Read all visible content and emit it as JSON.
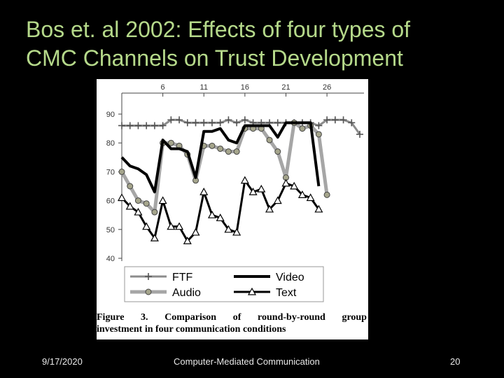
{
  "slide": {
    "title_line1": "Bos et. al 2002: Effects of four types of",
    "title_line2": "CMC Channels on Trust Development",
    "footer_date": "9/17/2020",
    "footer_center": "Computer-Mediated Communication",
    "footer_page": "20"
  },
  "figure": {
    "caption_line1": [
      "Figure",
      "3.",
      "Comparison",
      "of",
      "round-by-round",
      "group"
    ],
    "caption_line2": "investment in four communication conditions"
  },
  "chart_data": {
    "type": "line",
    "title": "",
    "xlabel": "",
    "ylabel": "",
    "xlim": [
      1,
      30
    ],
    "ylim": [
      40,
      90
    ],
    "x_ticks": [
      6,
      11,
      16,
      21,
      26
    ],
    "y_ticks": [
      40,
      50,
      60,
      70,
      80,
      90
    ],
    "legend_position": "bottom",
    "x": [
      1,
      2,
      3,
      4,
      5,
      6,
      7,
      8,
      9,
      10,
      11,
      12,
      13,
      14,
      15,
      16,
      17,
      18,
      19,
      20,
      21,
      22,
      23,
      24,
      25,
      26,
      27,
      28,
      29,
      30
    ],
    "series": [
      {
        "name": "FTF",
        "color": "#888888",
        "marker": "plus",
        "values": [
          86,
          86,
          86,
          86,
          86,
          86,
          88,
          88,
          87,
          87,
          87,
          87,
          87,
          88,
          87,
          88,
          87,
          87,
          87,
          87,
          87,
          87,
          87,
          87,
          86,
          88,
          88,
          88,
          87,
          83
        ]
      },
      {
        "name": "Audio",
        "color": "#a0a0a0",
        "marker": "circle",
        "values": [
          70,
          65,
          60,
          59,
          56,
          80,
          80,
          79,
          76,
          67,
          79,
          79,
          78,
          77,
          77,
          85,
          85,
          85,
          81,
          77,
          68,
          87,
          85,
          86,
          83,
          62,
          null,
          null,
          null,
          null
        ]
      },
      {
        "name": "Video",
        "color": "#000000",
        "marker": "none",
        "values": [
          75,
          72,
          71,
          69,
          63,
          81,
          78,
          78,
          77,
          68,
          84,
          84,
          85,
          81,
          80,
          86,
          86,
          86,
          86,
          82,
          87,
          87,
          87,
          87,
          65,
          null,
          null,
          null,
          null,
          null
        ]
      },
      {
        "name": "Text",
        "color": "#000000",
        "marker": "triangle",
        "values": [
          61,
          58,
          56,
          51,
          47,
          60,
          51,
          51,
          46,
          49,
          63,
          55,
          54,
          50,
          49,
          67,
          63,
          64,
          57,
          60,
          66,
          65,
          62,
          61,
          57,
          null,
          null,
          null,
          null,
          null
        ]
      }
    ]
  }
}
